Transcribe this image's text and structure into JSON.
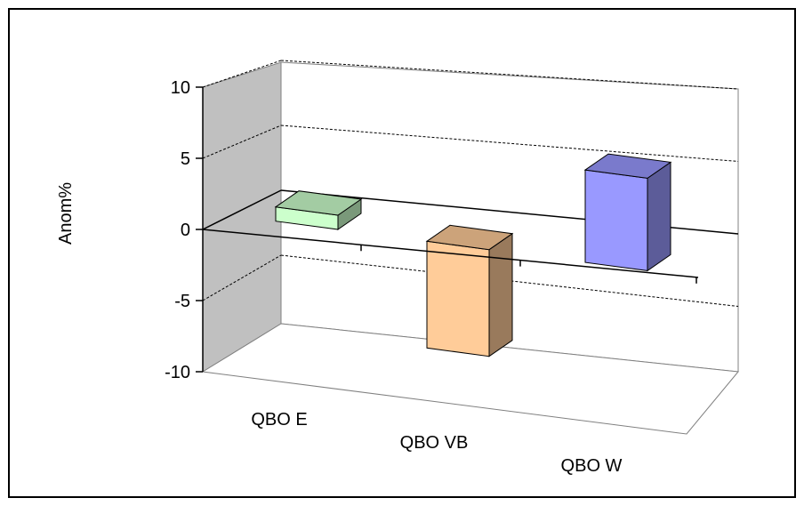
{
  "chart_data": {
    "type": "bar",
    "style": "3d-column",
    "title": "",
    "xlabel": "",
    "ylabel": "Anom%",
    "categories": [
      "QBO E",
      "QBO VB",
      "QBO W"
    ],
    "values": [
      1.0,
      -7.5,
      6.5
    ],
    "ylim": [
      -10,
      10
    ],
    "yticks": [
      "-10",
      "-5",
      "0",
      "5",
      "10"
    ],
    "grid": true,
    "legend": "none",
    "colors": {
      "bars": [
        "#ccffcc",
        "#ffcc99",
        "#9999ff"
      ],
      "back_wall": "#ffffff",
      "side_wall": "#c0c0c0",
      "border": "#000000"
    }
  }
}
